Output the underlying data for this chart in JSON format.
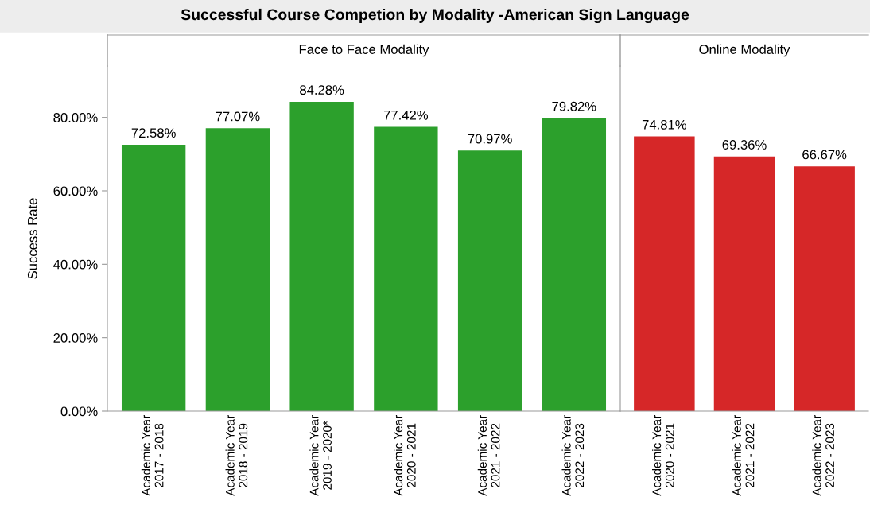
{
  "chart_data": [
    {
      "type": "bar",
      "title": "Successful Course Competion by Modality -American Sign Language",
      "subtitle": "Face to Face Modality",
      "ylabel": "Success Rate",
      "categories": [
        "Academic Year\n2017 - 2018",
        "Academic Year\n2018 - 2019",
        "Academic Year\n2019 - 2020*",
        "Academic Year\n2020 - 2021",
        "Academic Year\n2021 - 2022",
        "Academic Year\n2022 - 2023"
      ],
      "values": [
        72.58,
        77.07,
        84.28,
        77.42,
        70.97,
        79.82
      ],
      "value_labels": [
        "72.58%",
        "77.07%",
        "84.28%",
        "77.42%",
        "70.97%",
        "79.82%"
      ],
      "color": "#2ca02c",
      "ylim": [
        0,
        94
      ],
      "yticks": [
        {
          "value": 0,
          "label": "0.00%"
        },
        {
          "value": 20,
          "label": "20.00%"
        },
        {
          "value": 40,
          "label": "40.00%"
        },
        {
          "value": 60,
          "label": "60.00%"
        },
        {
          "value": 80,
          "label": "80.00%"
        }
      ],
      "grid": false,
      "legend": false
    },
    {
      "type": "bar",
      "subtitle": "Online Modality",
      "categories": [
        "Academic Year\n2020 - 2021",
        "Academic Year\n2021 - 2022",
        "Academic Year\n2022 - 2023"
      ],
      "values": [
        74.81,
        69.36,
        66.67
      ],
      "value_labels": [
        "74.81%",
        "69.36%",
        "66.67%"
      ],
      "color": "#d62728",
      "ylim": [
        0,
        94
      ],
      "tick_labels": "x",
      "grid": false,
      "legend": false
    }
  ]
}
